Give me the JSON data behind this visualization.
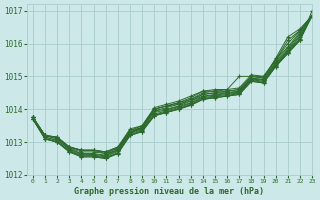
{
  "background_color": "#cce8e8",
  "grid_color": "#aacccc",
  "line_color": "#2d6a2d",
  "xlabel": "Graphe pression niveau de la mer (hPa)",
  "xlim": [
    -0.5,
    23
  ],
  "ylim": [
    1012,
    1017.2
  ],
  "yticks": [
    1012,
    1013,
    1014,
    1015,
    1016,
    1017
  ],
  "xticks": [
    0,
    1,
    2,
    3,
    4,
    5,
    6,
    7,
    8,
    9,
    10,
    11,
    12,
    13,
    14,
    15,
    16,
    17,
    18,
    19,
    20,
    21,
    22,
    23
  ],
  "series": [
    [
      1013.75,
      1013.2,
      1013.15,
      1012.85,
      1012.75,
      1012.75,
      1012.7,
      1012.8,
      1013.35,
      1013.5,
      1014.0,
      1014.1,
      1014.2,
      1014.3,
      1014.5,
      1014.55,
      1014.55,
      1014.6,
      1015.0,
      1014.95,
      1015.55,
      1016.2,
      1016.45,
      1016.85
    ],
    [
      1013.75,
      1013.2,
      1013.15,
      1012.85,
      1012.75,
      1012.75,
      1012.7,
      1012.85,
      1013.4,
      1013.5,
      1014.05,
      1014.15,
      1014.25,
      1014.4,
      1014.55,
      1014.6,
      1014.6,
      1014.65,
      1015.05,
      1015.0,
      1015.5,
      1016.1,
      1016.4,
      1016.85
    ],
    [
      1013.75,
      1013.2,
      1013.15,
      1012.85,
      1012.75,
      1012.75,
      1012.7,
      1012.85,
      1013.35,
      1013.45,
      1014.0,
      1014.1,
      1014.2,
      1014.35,
      1014.55,
      1014.55,
      1014.6,
      1015.0,
      1015.0,
      1015.0,
      1015.5,
      1016.0,
      1016.4,
      1016.85
    ],
    [
      1013.75,
      1013.2,
      1013.1,
      1012.85,
      1012.75,
      1012.75,
      1012.65,
      1012.75,
      1013.3,
      1013.45,
      1014.0,
      1014.1,
      1014.15,
      1014.3,
      1014.45,
      1014.5,
      1014.55,
      1014.6,
      1015.0,
      1014.95,
      1015.5,
      1015.9,
      1016.35,
      1016.85
    ],
    [
      1013.75,
      1013.2,
      1013.1,
      1012.82,
      1012.7,
      1012.7,
      1012.65,
      1012.82,
      1013.3,
      1013.4,
      1013.95,
      1014.05,
      1014.15,
      1014.25,
      1014.45,
      1014.5,
      1014.5,
      1014.55,
      1014.95,
      1014.9,
      1015.45,
      1015.85,
      1016.3,
      1016.85
    ],
    [
      1013.75,
      1013.15,
      1013.05,
      1012.8,
      1012.65,
      1012.65,
      1012.6,
      1012.78,
      1013.3,
      1013.45,
      1013.95,
      1014.0,
      1014.1,
      1014.25,
      1014.4,
      1014.45,
      1014.5,
      1014.55,
      1014.95,
      1014.9,
      1015.4,
      1015.8,
      1016.25,
      1016.85
    ],
    [
      1013.75,
      1013.15,
      1013.05,
      1012.78,
      1012.63,
      1012.62,
      1012.58,
      1012.75,
      1013.28,
      1013.42,
      1013.9,
      1013.98,
      1014.08,
      1014.2,
      1014.38,
      1014.43,
      1014.48,
      1014.52,
      1014.92,
      1014.88,
      1015.38,
      1015.78,
      1016.2,
      1016.85
    ],
    [
      1013.7,
      1013.1,
      1013.0,
      1012.75,
      1012.6,
      1012.6,
      1012.55,
      1012.72,
      1013.25,
      1013.38,
      1013.85,
      1013.95,
      1014.05,
      1014.18,
      1014.35,
      1014.4,
      1014.45,
      1014.5,
      1014.9,
      1014.85,
      1015.35,
      1015.75,
      1016.15,
      1016.85
    ],
    [
      1013.7,
      1013.1,
      1013.0,
      1012.72,
      1012.58,
      1012.58,
      1012.52,
      1012.68,
      1013.22,
      1013.35,
      1013.82,
      1013.92,
      1014.02,
      1014.15,
      1014.32,
      1014.38,
      1014.42,
      1014.48,
      1014.88,
      1014.82,
      1015.32,
      1015.72,
      1016.12,
      1016.85
    ],
    [
      1013.7,
      1013.1,
      1013.0,
      1012.7,
      1012.55,
      1012.55,
      1012.5,
      1012.65,
      1013.2,
      1013.32,
      1013.8,
      1013.9,
      1014.0,
      1014.12,
      1014.3,
      1014.35,
      1014.4,
      1014.45,
      1014.85,
      1014.8,
      1015.3,
      1015.7,
      1016.1,
      1016.85
    ],
    [
      1013.7,
      1013.1,
      1013.0,
      1012.7,
      1012.55,
      1012.55,
      1012.5,
      1012.65,
      1013.2,
      1013.32,
      1013.8,
      1013.9,
      1014.0,
      1014.12,
      1014.3,
      1014.35,
      1014.4,
      1014.45,
      1014.85,
      1014.8,
      1015.3,
      1015.7,
      1016.1,
      1017.0
    ]
  ]
}
